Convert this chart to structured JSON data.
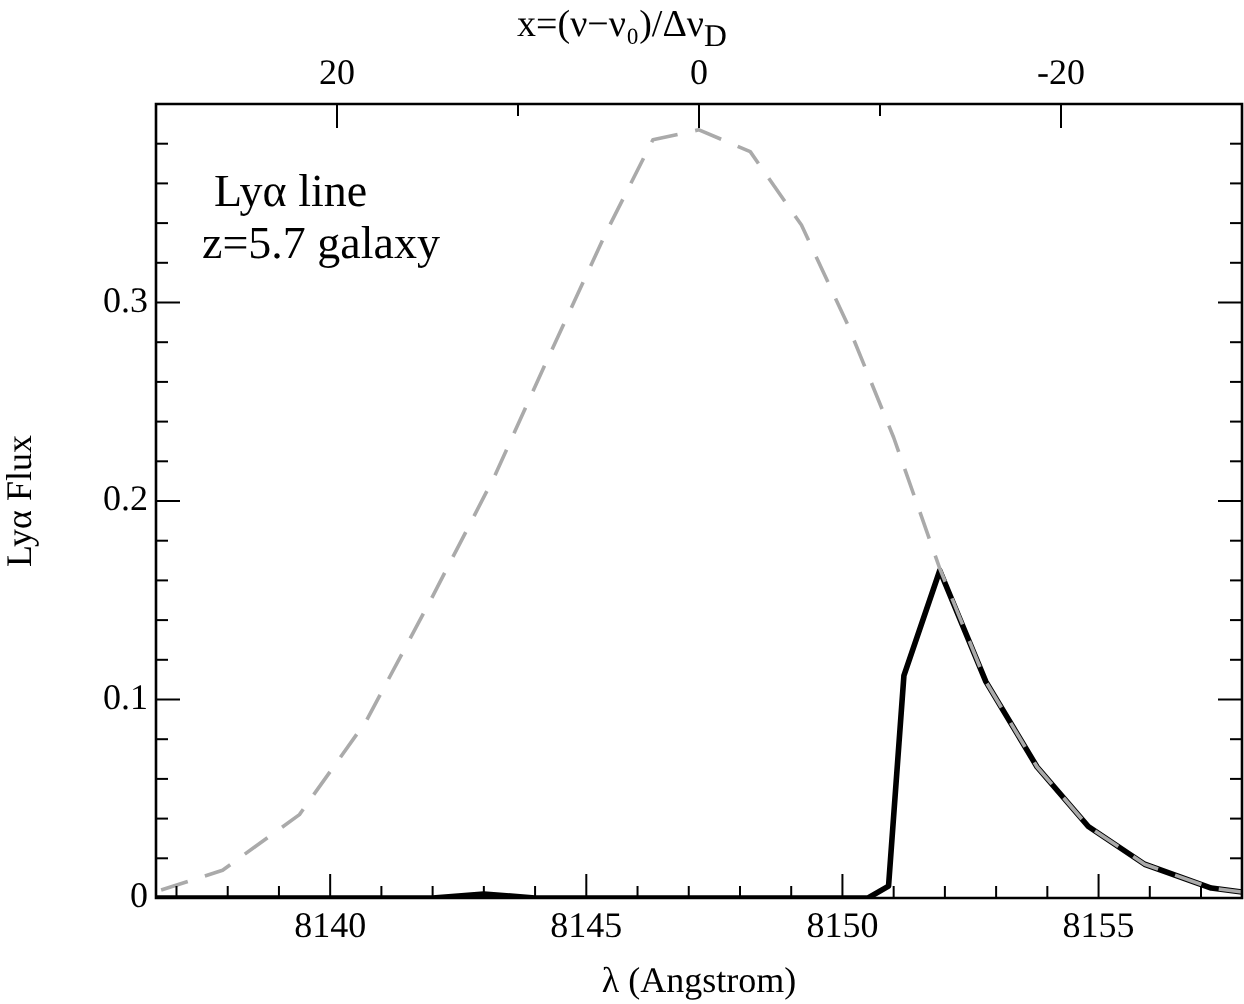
{
  "chart_data": {
    "type": "line",
    "xlabel": "λ (Angstrom)",
    "ylabel": "Lyα Flux",
    "x2label": "x=(ν−ν₀)/Δν$_{D}$",
    "annotations": [
      "Lyα line",
      "z=5.7 galaxy"
    ],
    "xlim": [
      8136.6,
      8157.8
    ],
    "xticks": [
      {
        "value": 8137,
        "label": null
      },
      {
        "value": 8138,
        "label": null
      },
      {
        "value": 8139,
        "label": null
      },
      8140,
      {
        "value": 8141,
        "label": null
      },
      {
        "value": 8142,
        "label": null
      },
      {
        "value": 8143,
        "label": null
      },
      {
        "value": 8144,
        "label": null
      },
      8145,
      {
        "value": 8146,
        "label": null
      },
      {
        "value": 8147,
        "label": null
      },
      {
        "value": 8148,
        "label": null
      },
      {
        "value": 8149,
        "label": null
      },
      8150,
      {
        "value": 8151,
        "label": null
      },
      {
        "value": 8152,
        "label": null
      },
      {
        "value": 8153,
        "label": null
      },
      {
        "value": 8154,
        "label": null
      },
      8155,
      {
        "value": 8156,
        "label": null
      },
      {
        "value": 8157,
        "label": null
      }
    ],
    "x2lim": [
      30,
      -30
    ],
    "x2ticks": [
      20,
      {
        "value": 10,
        "label": null
      },
      0,
      {
        "value": -10,
        "label": null
      },
      -20
    ],
    "ylim": [
      0,
      0.4
    ],
    "yticks": [
      0,
      {
        "value": 0.02,
        "label": null
      },
      {
        "value": 0.04,
        "label": null
      },
      {
        "value": 0.06,
        "label": null
      },
      {
        "value": 0.08,
        "label": null
      },
      0.1,
      {
        "value": 0.12,
        "label": null
      },
      {
        "value": 0.14,
        "label": null
      },
      {
        "value": 0.16,
        "label": null
      },
      {
        "value": 0.18,
        "label": null
      },
      0.2,
      {
        "value": 0.22,
        "label": null
      },
      {
        "value": 0.24,
        "label": null
      },
      {
        "value": 0.26,
        "label": null
      },
      {
        "value": 0.28,
        "label": null
      },
      0.3,
      {
        "value": 0.32,
        "label": null
      },
      {
        "value": 0.34,
        "label": null
      },
      {
        "value": 0.36,
        "label": null
      },
      {
        "value": 0.38,
        "label": null
      }
    ],
    "grid": false,
    "legend": false,
    "marker": "none",
    "series": [
      {
        "color": "#aaaaaa",
        "line_style": "dashed",
        "x": [
          8136.7,
          8137.9,
          8139.4,
          8140.7,
          8142.0,
          8143.2,
          8144.2,
          8145.4,
          8146.3,
          8147.2,
          8148.2,
          8149.2,
          8150.1,
          8151.0,
          8151.9,
          8152.8,
          8153.8,
          8154.8,
          8155.9,
          8157.2,
          8157.8
        ],
        "values": [
          0.004,
          0.014,
          0.042,
          0.089,
          0.152,
          0.212,
          0.269,
          0.336,
          0.382,
          0.387,
          0.376,
          0.339,
          0.289,
          0.232,
          0.166,
          0.109,
          0.066,
          0.036,
          0.017,
          0.005,
          0.003
        ]
      },
      {
        "color": "#000000",
        "line_style": "solid",
        "x": [
          8136.6,
          8142.0,
          8143.0,
          8144.0,
          8150.5,
          8150.9,
          8151.2,
          8151.9,
          8152.8,
          8153.8,
          8154.8,
          8155.9,
          8157.2,
          8157.8
        ],
        "values": [
          0,
          0,
          0.002,
          0,
          0,
          0.006,
          0.112,
          0.165,
          0.109,
          0.066,
          0.036,
          0.017,
          0.005,
          0.003
        ]
      }
    ]
  }
}
